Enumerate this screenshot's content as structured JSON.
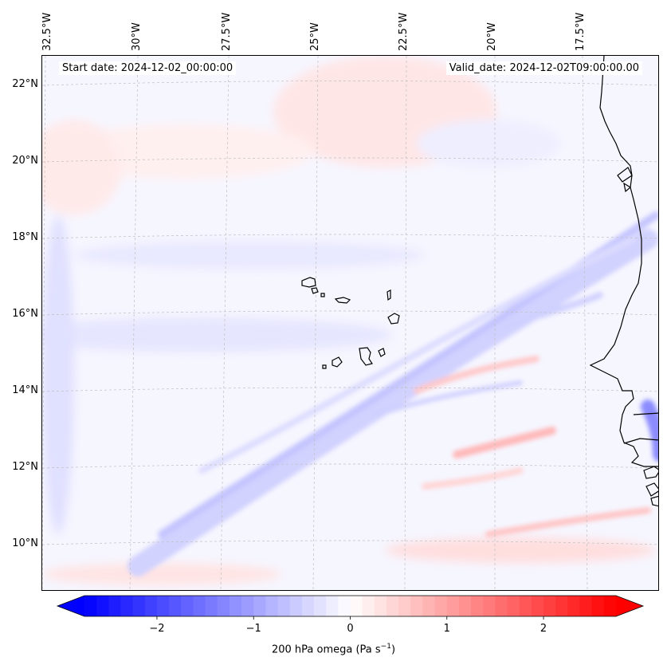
{
  "map": {
    "start_date_text": "Start date: 2024-12-02_00:00:00",
    "valid_date_text": "Valid_date: 2024-12-02T09:00:00.00",
    "lat_labels": [
      "22°N",
      "20°N",
      "18°N",
      "16°N",
      "14°N",
      "12°N",
      "10°N"
    ],
    "lon_labels": [
      "32.5°W",
      "30°W",
      "27.5°W",
      "25°W",
      "22.5°W",
      "20°W",
      "17.5°W"
    ],
    "coastline_color": "#000000",
    "gridline_color": "#bfbfbf"
  },
  "colorbar": {
    "label_main": "200 hPa omega (Pa s",
    "label_sup": "−1",
    "label_end": ")",
    "ticks": [
      "−2",
      "−1",
      "0",
      "1",
      "2"
    ],
    "tick_values": [
      -2,
      -1,
      0,
      1,
      2
    ],
    "range": [
      -2.75,
      2.75
    ],
    "low_color": "#0000ff",
    "mid_color": "#ffffff",
    "high_color": "#ff0000",
    "extend": "both"
  }
}
